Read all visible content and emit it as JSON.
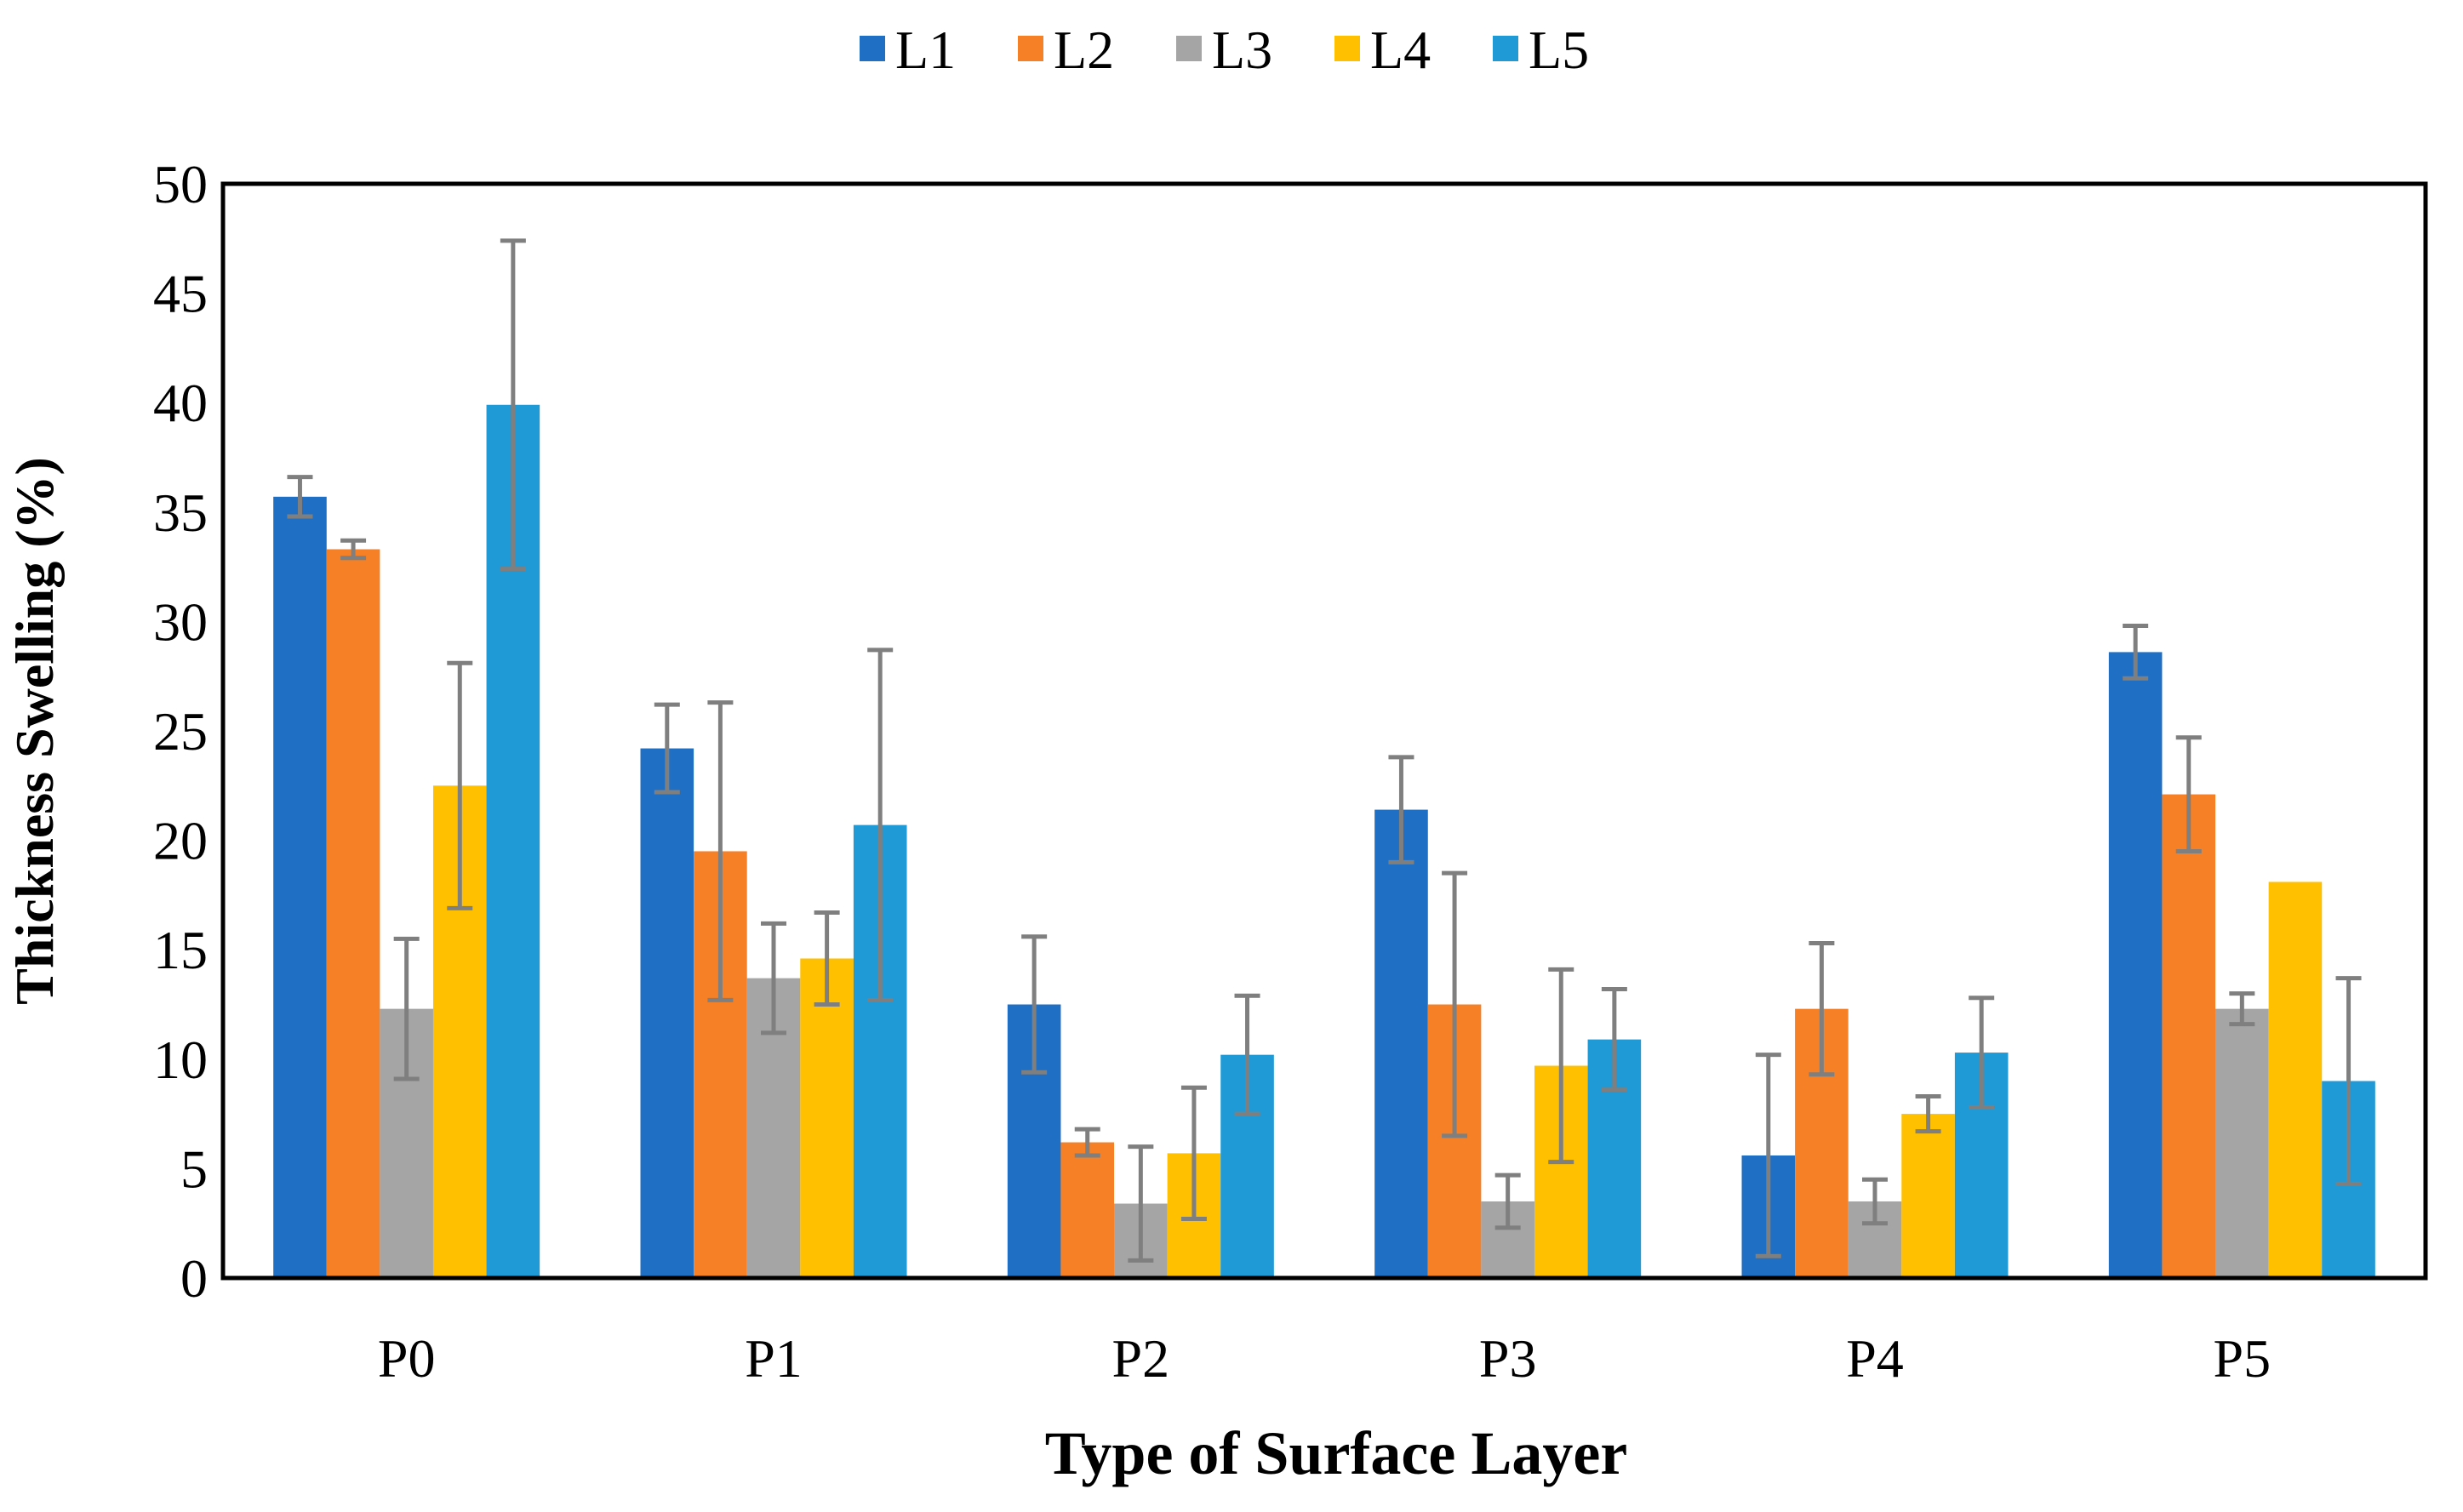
{
  "chart_data": {
    "type": "bar",
    "title": "",
    "xlabel": "Type of Surface Layer",
    "ylabel": "Thickness Swelling (%)",
    "ylim": [
      0,
      50
    ],
    "yticks": [
      "0",
      "5",
      "10",
      "15",
      "20",
      "25",
      "30",
      "35",
      "40",
      "45",
      "50"
    ],
    "ytick_values": [
      0,
      5,
      10,
      15,
      20,
      25,
      30,
      35,
      40,
      45,
      50
    ],
    "grid": false,
    "legend_position": "top-center",
    "categories": [
      "P0",
      "P1",
      "P2",
      "P3",
      "P4",
      "P5"
    ],
    "error_bar_color": "#7f7f7f",
    "series": [
      {
        "name": "L1",
        "color": "#1f6fc5",
        "values": [
          35.7,
          24.2,
          12.5,
          21.4,
          5.6,
          28.6
        ],
        "errors": [
          0.9,
          2.0,
          3.1,
          2.4,
          4.6,
          1.2
        ]
      },
      {
        "name": "L2",
        "color": "#f58025",
        "values": [
          33.3,
          19.5,
          6.2,
          12.5,
          12.3,
          22.1
        ],
        "errors": [
          0.4,
          6.8,
          0.6,
          6.0,
          3.0,
          2.6
        ]
      },
      {
        "name": "L3",
        "color": "#a5a5a5",
        "values": [
          12.3,
          13.7,
          3.4,
          3.5,
          3.5,
          12.3
        ],
        "errors": [
          3.2,
          2.5,
          2.6,
          1.2,
          1.0,
          0.7
        ]
      },
      {
        "name": "L4",
        "color": "#ffc000",
        "values": [
          22.5,
          14.6,
          5.7,
          9.7,
          7.5,
          18.1
        ],
        "errors": [
          5.6,
          2.1,
          3.0,
          4.4,
          0.8,
          0
        ]
      },
      {
        "name": "L5",
        "color": "#1f9ad6",
        "values": [
          39.9,
          20.7,
          10.2,
          10.9,
          10.3,
          9.0
        ],
        "errors": [
          7.5,
          8.0,
          2.7,
          2.3,
          2.5,
          4.7
        ]
      }
    ]
  }
}
